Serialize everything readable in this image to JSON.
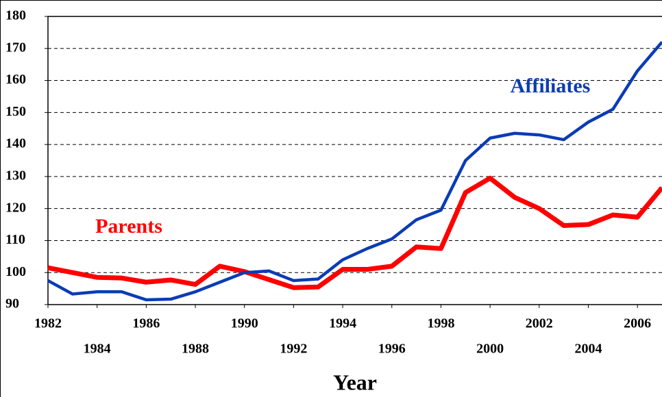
{
  "chart_data": {
    "type": "line",
    "x_label": "Year",
    "x": [
      1982,
      1983,
      1984,
      1985,
      1986,
      1987,
      1988,
      1989,
      1990,
      1991,
      1992,
      1993,
      1994,
      1995,
      1996,
      1997,
      1998,
      1999,
      2000,
      2001,
      2002,
      2003,
      2004,
      2005,
      2006,
      2007
    ],
    "series": [
      {
        "name": "Affiliates",
        "color": "#0a3cb4",
        "values": [
          97.5,
          93.3,
          94,
          94,
          91.5,
          91.7,
          94,
          97,
          100,
          100.5,
          97.5,
          98,
          104,
          107.5,
          110.5,
          116.5,
          119.5,
          135,
          142,
          143.5,
          143,
          141.5,
          147,
          151,
          163,
          172
        ]
      },
      {
        "name": "Parents",
        "color": "#ff0000",
        "values": [
          101.5,
          100,
          98.5,
          98.3,
          97,
          97.7,
          96.3,
          102,
          100.3,
          97.8,
          95.3,
          95.5,
          101,
          101,
          102,
          108,
          107.5,
          125,
          129.5,
          123.5,
          120,
          114.7,
          115,
          118,
          117.3,
          126.5
        ]
      }
    ],
    "xlim": [
      1982,
      2007
    ],
    "xticks": [
      1982,
      1984,
      1986,
      1988,
      1990,
      1992,
      1994,
      1996,
      1998,
      2000,
      2002,
      2004,
      2006
    ],
    "ylim": [
      90,
      180
    ],
    "yticks": [
      90,
      100,
      110,
      120,
      130,
      140,
      150,
      160,
      170,
      180
    ],
    "grid": true
  }
}
